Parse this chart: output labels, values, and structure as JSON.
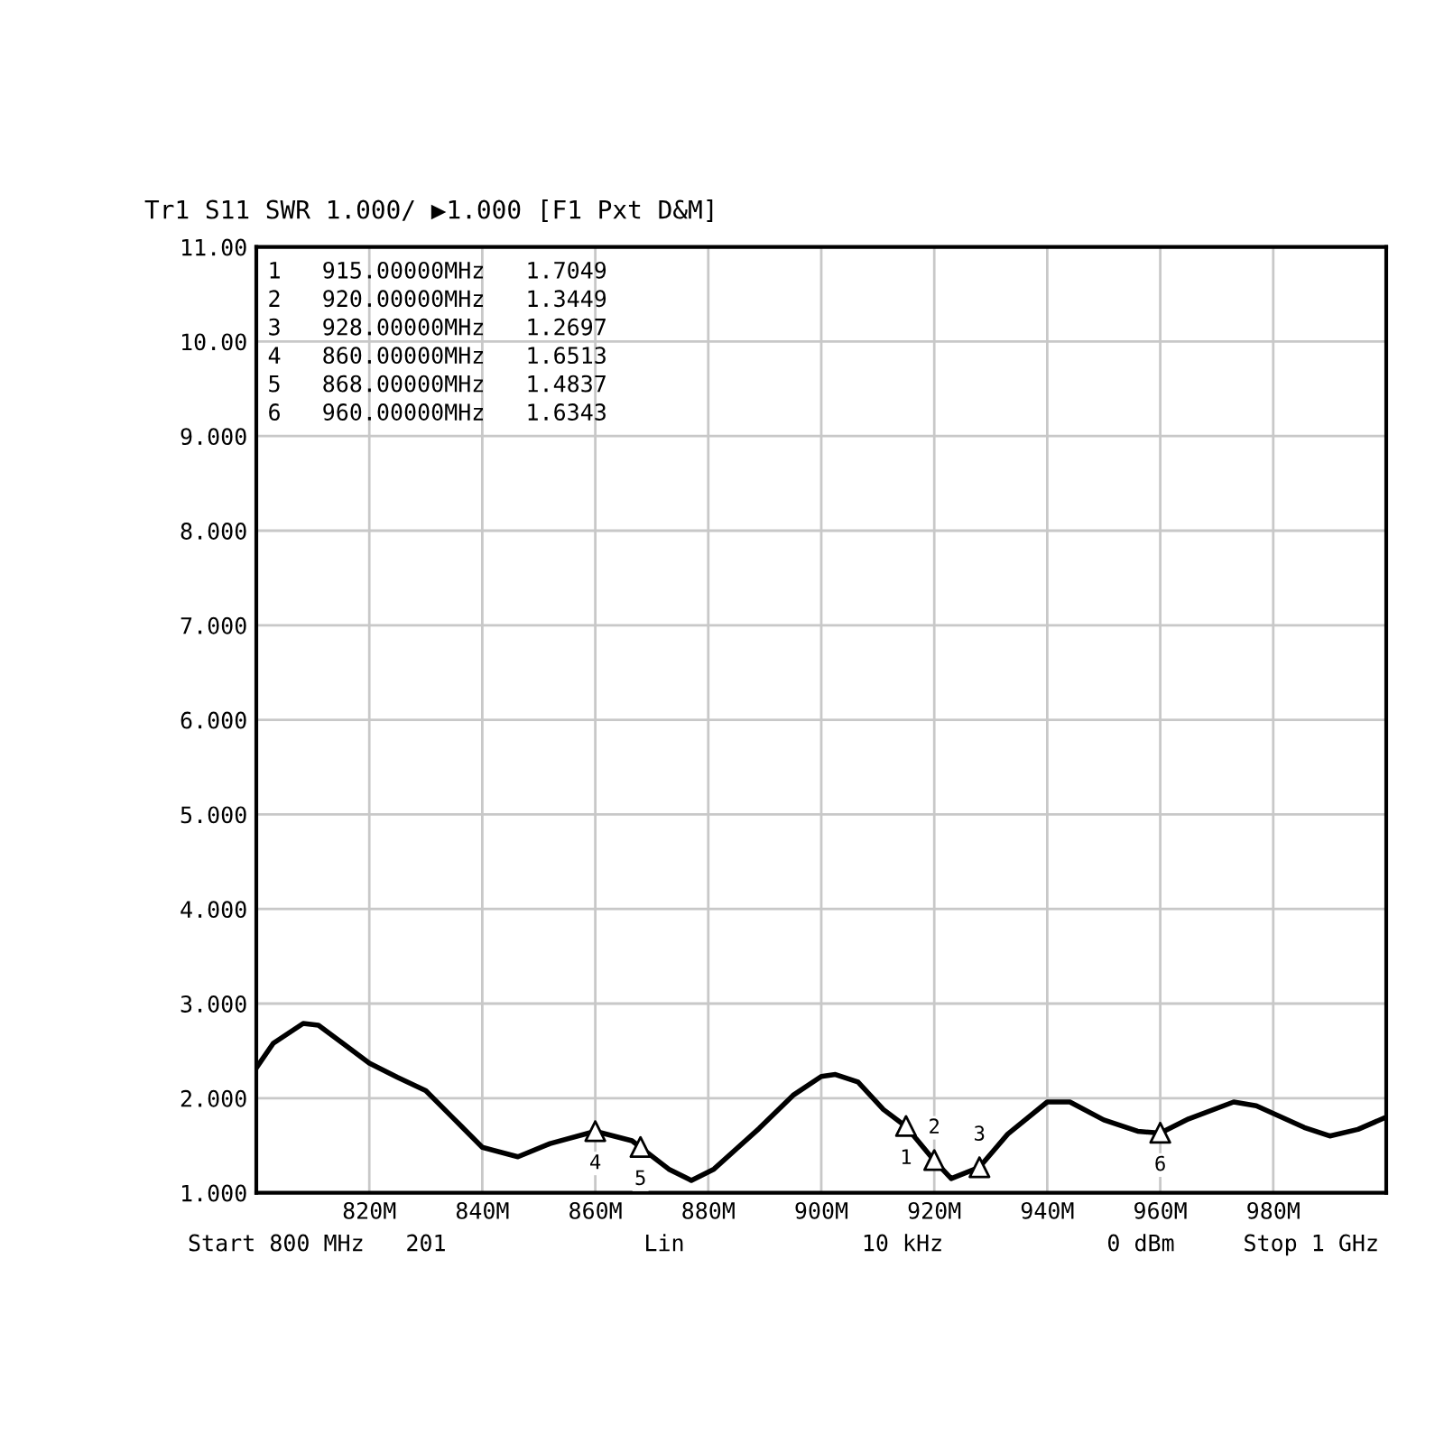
{
  "chart_data": {
    "type": "line",
    "title": "Tr1 S11 SWR 1.000/ ▶1.000 [F1 Pxt D&M]",
    "xlim": [
      800,
      1000
    ],
    "ylim": [
      1,
      11
    ],
    "xticks": [
      {
        "value": 820,
        "label": "820M"
      },
      {
        "value": 840,
        "label": "840M"
      },
      {
        "value": 860,
        "label": "860M"
      },
      {
        "value": 880,
        "label": "880M"
      },
      {
        "value": 900,
        "label": "900M"
      },
      {
        "value": 920,
        "label": "920M"
      },
      {
        "value": 940,
        "label": "940M"
      },
      {
        "value": 960,
        "label": "960M"
      },
      {
        "value": 980,
        "label": "980M"
      }
    ],
    "yticks": [
      {
        "value": 1,
        "label": "1.000"
      },
      {
        "value": 2,
        "label": "2.000"
      },
      {
        "value": 3,
        "label": "3.000"
      },
      {
        "value": 4,
        "label": "4.000"
      },
      {
        "value": 5,
        "label": "5.000"
      },
      {
        "value": 6,
        "label": "6.000"
      },
      {
        "value": 7,
        "label": "7.000"
      },
      {
        "value": 8,
        "label": "8.000"
      },
      {
        "value": 9,
        "label": "9.000"
      },
      {
        "value": 10,
        "label": "10.00"
      },
      {
        "value": 11,
        "label": "11.00"
      }
    ],
    "grid": true,
    "series": [
      {
        "color": "#000000",
        "marker": "none",
        "line_style": "solid",
        "x": [
          800,
          803,
          808.3,
          811,
          815.3,
          820,
          825,
          830,
          835,
          840,
          846.3,
          852,
          860,
          866.5,
          868,
          873,
          877,
          881,
          889,
          895,
          900,
          902.5,
          906.5,
          911,
          915,
          920,
          923,
          928,
          933,
          940,
          944,
          950,
          956,
          960,
          965,
          973,
          977,
          985.5,
          990,
          995,
          1000
        ],
        "values": [
          2.32,
          2.58,
          2.79,
          2.77,
          2.58,
          2.37,
          2.22,
          2.08,
          1.78,
          1.48,
          1.38,
          1.52,
          1.65,
          1.55,
          1.48,
          1.25,
          1.13,
          1.25,
          1.68,
          2.03,
          2.23,
          2.25,
          2.17,
          1.88,
          1.7,
          1.34,
          1.15,
          1.27,
          1.62,
          1.96,
          1.96,
          1.77,
          1.65,
          1.63,
          1.78,
          1.96,
          1.92,
          1.69,
          1.6,
          1.67,
          1.8
        ]
      },
      {
        "type": "scatter",
        "color": "#000000",
        "marker": "triangle",
        "x": [
          915,
          920,
          928,
          860,
          868,
          960
        ],
        "values": [
          1.7049,
          1.3449,
          1.2697,
          1.6513,
          1.4837,
          1.6343
        ]
      }
    ],
    "annotations": [
      "1   915.00000MHz   1.7049",
      "2   920.00000MHz   1.3449",
      "3   928.00000MHz   1.2697",
      "4   860.00000MHz   1.6513",
      "5   868.00000MHz   1.4837",
      "6   960.00000MHz   1.6343",
      "Start 800 MHz",
      "201",
      "Lin",
      "10 kHz",
      "0 dBm",
      "Stop 1 GHz",
      {
        "text": "1",
        "x": 915,
        "y": 1.7049
      },
      {
        "text": "2",
        "x": 920,
        "y": 1.3449
      },
      {
        "text": "3",
        "x": 928,
        "y": 1.2697
      },
      {
        "text": "4",
        "x": 860,
        "y": 1.6513
      },
      {
        "text": "5",
        "x": 868,
        "y": 1.4837
      },
      {
        "text": "6",
        "x": 960,
        "y": 1.6343
      }
    ]
  }
}
